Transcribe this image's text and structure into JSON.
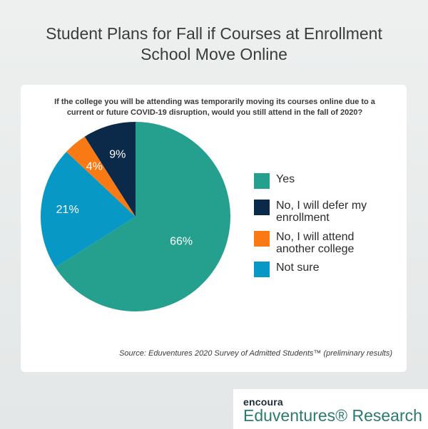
{
  "header": {
    "title_line1": "Student Plans for Fall if Courses at Enrollment",
    "title_line2": "School Move Online"
  },
  "chart_data": {
    "type": "pie",
    "title": "Student Plans for Fall if Courses at Enrollment School Move Online",
    "subtitle": "If the college you will be attending was temporarily moving its courses online due to a current or future COVID-19 disruption, would you still attend in the fall of 2020?",
    "slices": [
      {
        "label": "Yes",
        "value": 66,
        "display": "66%",
        "color": "#25a08f"
      },
      {
        "label": "Not sure",
        "value": 21,
        "display": "21%",
        "color": "#0898c6"
      },
      {
        "label": "No, I will attend another college",
        "value": 4,
        "display": "4%",
        "color": "#f97a14"
      },
      {
        "label": "No, I will defer my enrollment",
        "value": 9,
        "display": "9%",
        "color": "#0b2a4a"
      }
    ],
    "legend_position": "right",
    "source": "Source: Eduventures 2020 Survey of Admitted Students™ (preliminary results)"
  },
  "legend": {
    "items": [
      {
        "line1": "Yes",
        "line2": "",
        "color": "#25a08f"
      },
      {
        "line1": "No, I will defer my",
        "line2": "enrollment",
        "color": "#0b2a4a"
      },
      {
        "line1": "No, I will attend",
        "line2": "another college",
        "color": "#f97a14"
      },
      {
        "line1": "Not sure",
        "line2": "",
        "color": "#0898c6"
      }
    ]
  },
  "brand": {
    "top": "encoura",
    "bottom": "Eduventures® Research"
  }
}
